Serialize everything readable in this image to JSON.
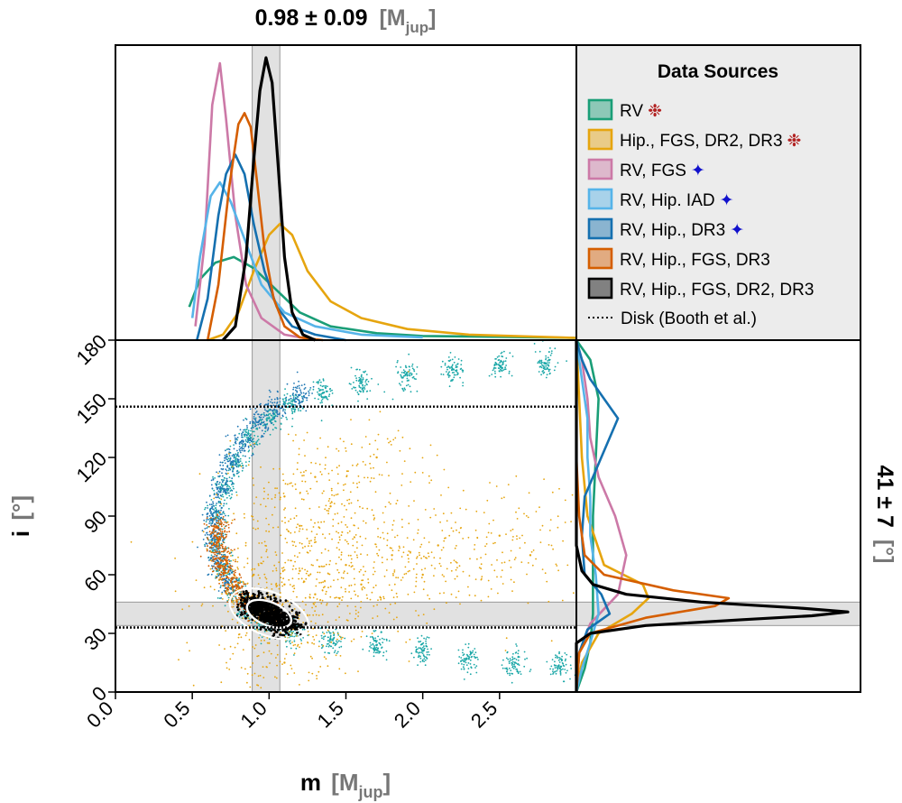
{
  "chart_data": [
    {
      "type": "area",
      "panel": "top-marginal",
      "title_value": "0.98 ± 0.09",
      "title_unit": "[M",
      "title_unit_sub": "jup",
      "title_unit_close": "]",
      "band": [
        0.89,
        1.07
      ],
      "xlim": [
        0,
        3.0
      ],
      "series": [
        {
          "name": "RV",
          "color": "#1a9e77",
          "x": [
            0.48,
            0.55,
            0.65,
            0.77,
            0.9,
            1.05,
            1.2,
            1.4,
            1.7,
            2.0,
            2.5,
            3.0
          ],
          "y": [
            0.12,
            0.22,
            0.28,
            0.3,
            0.26,
            0.18,
            0.1,
            0.05,
            0.025,
            0.015,
            0.012,
            0.008
          ]
        },
        {
          "name": "Hip., FGS, DR2, DR3",
          "color": "#e6a50f",
          "x": [
            0.6,
            0.7,
            0.8,
            0.9,
            1.0,
            1.07,
            1.15,
            1.25,
            1.4,
            1.6,
            1.9,
            2.3,
            3.0
          ],
          "y": [
            0.0,
            0.02,
            0.1,
            0.25,
            0.38,
            0.42,
            0.38,
            0.25,
            0.14,
            0.08,
            0.04,
            0.02,
            0.008
          ]
        },
        {
          "name": "RV, FGS",
          "color": "#cc79a7",
          "x": [
            0.52,
            0.58,
            0.63,
            0.68,
            0.72,
            0.78,
            0.85,
            0.95,
            1.1,
            1.3
          ],
          "y": [
            0.05,
            0.35,
            0.85,
            1.0,
            0.8,
            0.45,
            0.2,
            0.08,
            0.02,
            0.0
          ]
        },
        {
          "name": "RV, Hip. IAD",
          "color": "#56b4e9",
          "x": [
            0.5,
            0.55,
            0.62,
            0.68,
            0.75,
            0.85,
            0.95,
            1.1,
            1.3,
            1.6,
            2.0
          ],
          "y": [
            0.08,
            0.3,
            0.52,
            0.57,
            0.5,
            0.35,
            0.2,
            0.1,
            0.05,
            0.02,
            0.01
          ]
        },
        {
          "name": "RV, Hip., DR3",
          "color": "#1570b0",
          "x": [
            0.53,
            0.6,
            0.67,
            0.72,
            0.78,
            0.84,
            0.9,
            0.97,
            1.05,
            1.15,
            1.3,
            1.5
          ],
          "y": [
            0.0,
            0.15,
            0.45,
            0.6,
            0.67,
            0.6,
            0.42,
            0.25,
            0.12,
            0.05,
            0.02,
            0.0
          ]
        },
        {
          "name": "RV, Hip., FGS, DR3",
          "color": "#d55e00",
          "x": [
            0.6,
            0.67,
            0.74,
            0.8,
            0.84,
            0.88,
            0.92,
            0.97,
            1.03,
            1.1,
            1.2,
            1.35
          ],
          "y": [
            0.0,
            0.2,
            0.55,
            0.78,
            0.82,
            0.77,
            0.58,
            0.33,
            0.15,
            0.05,
            0.01,
            0.0
          ]
        },
        {
          "name": "RV, Hip., FGS, DR2, DR3",
          "color": "#000000",
          "x": [
            0.7,
            0.78,
            0.85,
            0.9,
            0.94,
            0.98,
            1.02,
            1.06,
            1.1,
            1.15,
            1.22,
            1.3
          ],
          "y": [
            0.0,
            0.05,
            0.3,
            0.65,
            0.9,
            1.02,
            0.93,
            0.62,
            0.3,
            0.1,
            0.02,
            0.0
          ]
        }
      ]
    },
    {
      "type": "scatter",
      "panel": "main",
      "xlabel": "m",
      "xlabel_unit": "[M",
      "xlabel_unit_sub": "jup",
      "xlabel_unit_close": "]",
      "ylabel": "i",
      "ylabel_unit": "[°]",
      "xlim": [
        0,
        3.0
      ],
      "ylim": [
        0,
        180
      ],
      "xticks": [
        "0.0",
        "0.5",
        "1.0",
        "1.5",
        "2.0",
        "2.5"
      ],
      "yticks": [
        "0",
        "30",
        "60",
        "90",
        "120",
        "150",
        "180"
      ],
      "disk_lines": [
        33,
        146
      ],
      "horizontal_band": [
        34,
        46
      ],
      "vertical_band": [
        0.89,
        1.07
      ],
      "point_groups": [
        {
          "name": "RV",
          "color": "#1aa7a7",
          "points": [
            [
              2.8,
              168
            ],
            [
              2.5,
              167
            ],
            [
              2.2,
              165
            ],
            [
              1.9,
              162
            ],
            [
              1.6,
              158
            ],
            [
              1.35,
              153
            ],
            [
              1.15,
              147
            ],
            [
              1.0,
              140
            ],
            [
              0.88,
              130
            ],
            [
              0.78,
              118
            ],
            [
              0.7,
              104
            ],
            [
              0.66,
              90
            ],
            [
              0.66,
              76
            ],
            [
              0.7,
              64
            ],
            [
              0.77,
              52
            ],
            [
              0.86,
              42
            ],
            [
              0.97,
              35
            ],
            [
              1.15,
              30
            ],
            [
              1.4,
              27
            ],
            [
              1.7,
              24
            ],
            [
              2.0,
              21
            ],
            [
              2.3,
              17
            ],
            [
              2.6,
              15
            ],
            [
              2.9,
              13
            ]
          ]
        },
        {
          "name": "RV, Hip., DR3",
          "color": "#1f77b4",
          "points": [
            [
              1.2,
              152
            ],
            [
              1.05,
              146
            ],
            [
              0.93,
              138
            ],
            [
              0.83,
              128
            ],
            [
              0.75,
              117
            ],
            [
              0.68,
              104
            ],
            [
              0.63,
              91
            ],
            [
              0.63,
              78
            ],
            [
              0.67,
              66
            ],
            [
              0.73,
              56
            ]
          ]
        },
        {
          "name": "RV, Hip., FGS, DR3",
          "color": "#d55e00",
          "points": [
            [
              0.67,
              84
            ],
            [
              0.66,
              76
            ],
            [
              0.68,
              68
            ],
            [
              0.71,
              61
            ],
            [
              0.76,
              54
            ],
            [
              0.82,
              48
            ],
            [
              0.9,
              43
            ],
            [
              1.0,
              40
            ]
          ]
        },
        {
          "name": "Hip., FGS, DR2, DR3",
          "color": "#e6a50f",
          "points": [
            [
              1.0,
              45
            ],
            [
              1.1,
              55
            ],
            [
              1.05,
              35
            ],
            [
              1.2,
              62
            ],
            [
              1.3,
              50
            ],
            [
              1.5,
              65
            ],
            [
              1.8,
              70
            ],
            [
              2.1,
              75
            ],
            [
              2.5,
              80
            ],
            [
              1.2,
              85
            ],
            [
              1.4,
              95
            ],
            [
              1.0,
              25
            ],
            [
              1.1,
              15
            ],
            [
              0.9,
              60
            ],
            [
              1.6,
              55
            ],
            [
              2.0,
              60
            ],
            [
              2.7,
              70
            ],
            [
              1.3,
              110
            ],
            [
              1.7,
              120
            ],
            [
              1.1,
              100
            ]
          ]
        },
        {
          "name": "RV, Hip., FGS, DR2, DR3",
          "color": "#000000",
          "points": [
            [
              1.0,
              40
            ],
            [
              0.95,
              43
            ],
            [
              1.05,
              37
            ],
            [
              0.9,
              46
            ],
            [
              1.1,
              35
            ]
          ]
        }
      ]
    },
    {
      "type": "area",
      "panel": "right-marginal",
      "title_value": "41 ± 7",
      "title_unit": "[°]",
      "band": [
        34,
        46
      ],
      "ylim": [
        0,
        180
      ],
      "series": [
        {
          "name": "RV",
          "color": "#1a9e77",
          "y": [
            0,
            12,
            25,
            40,
            60,
            90,
            120,
            150,
            170,
            180
          ],
          "x": [
            0.0,
            0.03,
            0.05,
            0.06,
            0.06,
            0.06,
            0.07,
            0.08,
            0.05,
            0.0
          ]
        },
        {
          "name": "Hip., FGS, DR2, DR3",
          "color": "#e6a50f",
          "y": [
            0,
            15,
            30,
            40,
            48,
            55,
            65,
            90,
            120,
            150,
            180
          ],
          "x": [
            0.0,
            0.02,
            0.08,
            0.2,
            0.26,
            0.24,
            0.1,
            0.04,
            0.02,
            0.01,
            0.0
          ]
        },
        {
          "name": "RV, FGS",
          "color": "#cc79a7",
          "y": [
            0,
            20,
            35,
            50,
            70,
            90,
            110,
            130,
            150,
            170,
            180
          ],
          "x": [
            0.0,
            0.01,
            0.05,
            0.15,
            0.18,
            0.14,
            0.08,
            0.05,
            0.04,
            0.02,
            0.0
          ]
        },
        {
          "name": "RV, Hip. IAD",
          "color": "#56b4e9",
          "y": [
            0,
            12,
            25,
            40,
            60,
            80,
            100,
            120,
            140,
            160,
            180
          ],
          "x": [
            0.0,
            0.02,
            0.05,
            0.08,
            0.07,
            0.05,
            0.05,
            0.04,
            0.04,
            0.02,
            0.0
          ]
        },
        {
          "name": "RV, Hip., DR3",
          "color": "#1570b0",
          "y": [
            0,
            20,
            32,
            40,
            50,
            60,
            80,
            100,
            120,
            140,
            150,
            160,
            170,
            180
          ],
          "x": [
            0.0,
            0.01,
            0.04,
            0.12,
            0.09,
            0.03,
            0.02,
            0.03,
            0.09,
            0.15,
            0.1,
            0.05,
            0.02,
            0.0
          ]
        },
        {
          "name": "RV, Hip., FGS, DR3",
          "color": "#d55e00",
          "y": [
            0,
            20,
            30,
            38,
            44,
            48,
            52,
            60,
            70,
            90,
            120,
            180
          ],
          "x": [
            0.0,
            0.01,
            0.05,
            0.25,
            0.5,
            0.55,
            0.35,
            0.1,
            0.03,
            0.01,
            0.0,
            0.0
          ]
        },
        {
          "name": "RV, Hip., FGS, DR2, DR3",
          "color": "#000000",
          "y": [
            0,
            25,
            30,
            34,
            37,
            39,
            41,
            43,
            46,
            50,
            55,
            62,
            75,
            90,
            180
          ],
          "x": [
            0.0,
            0.0,
            0.05,
            0.25,
            0.6,
            0.85,
            0.98,
            0.8,
            0.45,
            0.18,
            0.06,
            0.02,
            0.0,
            0.0,
            0.0
          ]
        }
      ]
    }
  ],
  "legend": {
    "title": "Data Sources",
    "items": [
      {
        "label": "RV",
        "color": "#1a9e77",
        "marker": "❉",
        "marker_color": "#b22222"
      },
      {
        "label": "Hip., FGS, DR2, DR3",
        "color": "#e6a50f",
        "marker": "❉",
        "marker_color": "#b22222"
      },
      {
        "label": "RV, FGS",
        "color": "#cc79a7",
        "marker": "✦",
        "marker_color": "#1111cc"
      },
      {
        "label": "RV, Hip. IAD",
        "color": "#56b4e9",
        "marker": "✦",
        "marker_color": "#1111cc"
      },
      {
        "label": "RV, Hip., DR3",
        "color": "#1570b0",
        "marker": "✦",
        "marker_color": "#1111cc"
      },
      {
        "label": "RV, Hip., FGS, DR3",
        "color": "#d55e00",
        "marker": "",
        "marker_color": ""
      },
      {
        "label": "RV, Hip., FGS, DR2, DR3",
        "color": "#000000",
        "marker": "",
        "marker_color": ""
      }
    ],
    "disk_label": "Disk (Booth et al.)"
  }
}
